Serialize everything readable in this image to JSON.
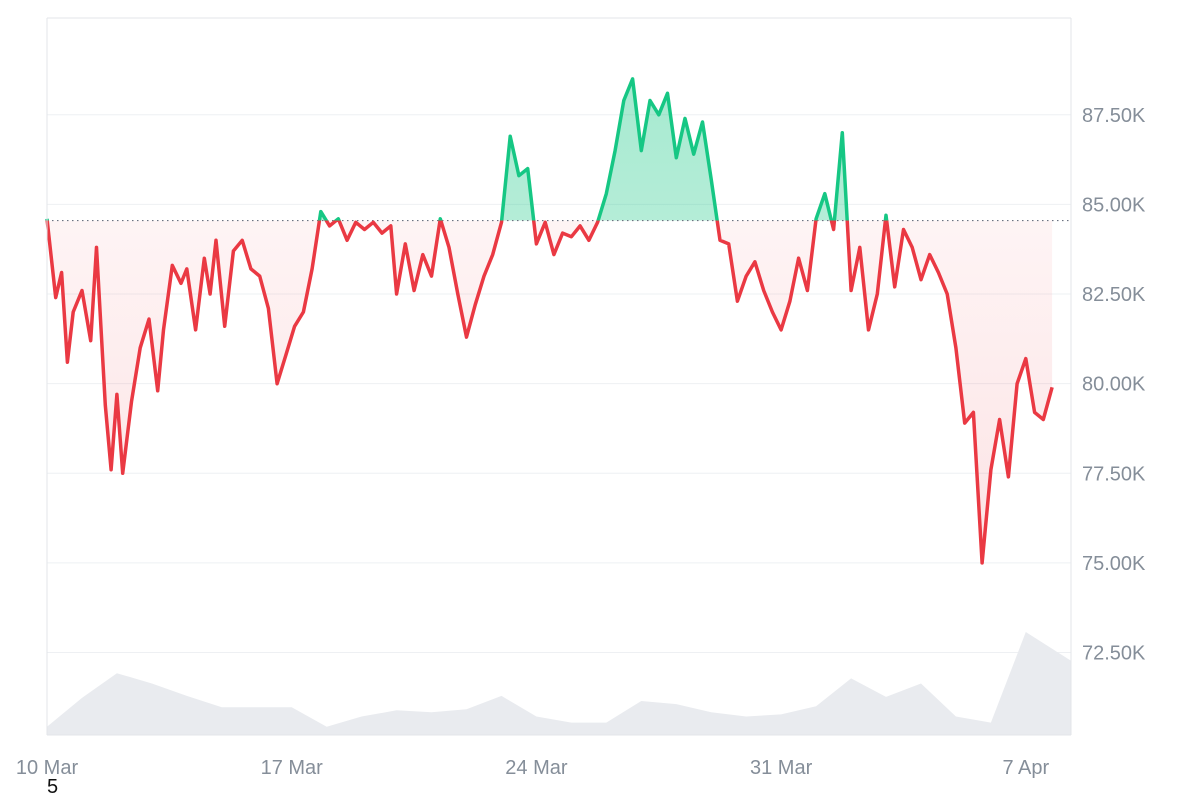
{
  "page_number": "5",
  "colors": {
    "up_line": "#16c784",
    "down_line": "#ea3943",
    "up_fill": "#16c784",
    "down_fill": "#ea3943",
    "baseline": "#6b7280",
    "grid": "#eef0f3",
    "frame": "#e3e6ea",
    "volume": "#e9ebef",
    "tick_text": "#858e99"
  },
  "chart_data": {
    "type": "line",
    "title": "",
    "xlabel": "",
    "ylabel": "",
    "baseline_value": 84.55,
    "ylim": [
      70.2,
      90.2
    ],
    "y_unit_suffix": "K",
    "ytick_values": [
      87.5,
      85.0,
      82.5,
      80.0,
      77.5,
      75.0,
      72.5
    ],
    "yticks": [
      "87.50K",
      "85.00K",
      "82.50K",
      "80.00K",
      "77.50K",
      "75.00K",
      "72.50K"
    ],
    "xlim": [
      "2025-03-10",
      "2025-04-08 07:00"
    ],
    "xticks": [
      {
        "label": "10 Mar",
        "date": "2025-03-10"
      },
      {
        "label": "17 Mar",
        "date": "2025-03-17"
      },
      {
        "label": "24 Mar",
        "date": "2025-03-24"
      },
      {
        "label": "31 Mar",
        "date": "2025-03-31"
      },
      {
        "label": "7 Apr",
        "date": "2025-04-07"
      }
    ],
    "grid": true,
    "series": [
      {
        "role": "price",
        "points": [
          [
            "2025-03-10 00:00",
            84.6
          ],
          [
            "2025-03-10 06:00",
            82.4
          ],
          [
            "2025-03-10 10:00",
            83.1
          ],
          [
            "2025-03-10 14:00",
            80.6
          ],
          [
            "2025-03-10 18:00",
            82.0
          ],
          [
            "2025-03-11 00:00",
            82.6
          ],
          [
            "2025-03-11 06:00",
            81.2
          ],
          [
            "2025-03-11 10:00",
            83.8
          ],
          [
            "2025-03-11 16:00",
            79.4
          ],
          [
            "2025-03-11 20:00",
            77.6
          ],
          [
            "2025-03-12 00:00",
            79.7
          ],
          [
            "2025-03-12 04:00",
            77.5
          ],
          [
            "2025-03-12 10:00",
            79.5
          ],
          [
            "2025-03-12 16:00",
            81.0
          ],
          [
            "2025-03-12 22:00",
            81.8
          ],
          [
            "2025-03-13 04:00",
            79.8
          ],
          [
            "2025-03-13 08:00",
            81.5
          ],
          [
            "2025-03-13 14:00",
            83.3
          ],
          [
            "2025-03-13 20:00",
            82.8
          ],
          [
            "2025-03-14 00:00",
            83.2
          ],
          [
            "2025-03-14 06:00",
            81.5
          ],
          [
            "2025-03-14 12:00",
            83.5
          ],
          [
            "2025-03-14 16:00",
            82.5
          ],
          [
            "2025-03-14 20:00",
            84.0
          ],
          [
            "2025-03-15 02:00",
            81.6
          ],
          [
            "2025-03-15 08:00",
            83.7
          ],
          [
            "2025-03-15 14:00",
            84.0
          ],
          [
            "2025-03-15 20:00",
            83.2
          ],
          [
            "2025-03-16 02:00",
            83.0
          ],
          [
            "2025-03-16 08:00",
            82.1
          ],
          [
            "2025-03-16 14:00",
            80.0
          ],
          [
            "2025-03-16 20:00",
            80.8
          ],
          [
            "2025-03-17 02:00",
            81.6
          ],
          [
            "2025-03-17 08:00",
            82.0
          ],
          [
            "2025-03-17 14:00",
            83.2
          ],
          [
            "2025-03-17 20:00",
            84.8
          ],
          [
            "2025-03-18 02:00",
            84.4
          ],
          [
            "2025-03-18 08:00",
            84.6
          ],
          [
            "2025-03-18 14:00",
            84.0
          ],
          [
            "2025-03-18 20:00",
            84.5
          ],
          [
            "2025-03-19 02:00",
            84.3
          ],
          [
            "2025-03-19 08:00",
            84.5
          ],
          [
            "2025-03-19 14:00",
            84.2
          ],
          [
            "2025-03-19 20:00",
            84.4
          ],
          [
            "2025-03-20 00:00",
            82.5
          ],
          [
            "2025-03-20 06:00",
            83.9
          ],
          [
            "2025-03-20 12:00",
            82.6
          ],
          [
            "2025-03-20 18:00",
            83.6
          ],
          [
            "2025-03-21 00:00",
            83.0
          ],
          [
            "2025-03-21 06:00",
            84.6
          ],
          [
            "2025-03-21 12:00",
            83.8
          ],
          [
            "2025-03-21 18:00",
            82.5
          ],
          [
            "2025-03-22 00:00",
            81.3
          ],
          [
            "2025-03-22 06:00",
            82.2
          ],
          [
            "2025-03-22 12:00",
            83.0
          ],
          [
            "2025-03-22 18:00",
            83.6
          ],
          [
            "2025-03-23 00:00",
            84.5
          ],
          [
            "2025-03-23 06:00",
            86.9
          ],
          [
            "2025-03-23 12:00",
            85.8
          ],
          [
            "2025-03-23 18:00",
            86.0
          ],
          [
            "2025-03-24 00:00",
            83.9
          ],
          [
            "2025-03-24 06:00",
            84.5
          ],
          [
            "2025-03-24 12:00",
            83.6
          ],
          [
            "2025-03-24 18:00",
            84.2
          ],
          [
            "2025-03-25 00:00",
            84.1
          ],
          [
            "2025-03-25 06:00",
            84.4
          ],
          [
            "2025-03-25 12:00",
            84.0
          ],
          [
            "2025-03-25 18:00",
            84.5
          ],
          [
            "2025-03-26 00:00",
            85.3
          ],
          [
            "2025-03-26 06:00",
            86.5
          ],
          [
            "2025-03-26 12:00",
            87.9
          ],
          [
            "2025-03-26 18:00",
            88.5
          ],
          [
            "2025-03-27 00:00",
            86.5
          ],
          [
            "2025-03-27 06:00",
            87.9
          ],
          [
            "2025-03-27 12:00",
            87.5
          ],
          [
            "2025-03-27 18:00",
            88.1
          ],
          [
            "2025-03-28 00:00",
            86.3
          ],
          [
            "2025-03-28 06:00",
            87.4
          ],
          [
            "2025-03-28 12:00",
            86.4
          ],
          [
            "2025-03-28 18:00",
            87.3
          ],
          [
            "2025-03-29 00:00",
            85.7
          ],
          [
            "2025-03-29 06:00",
            84.0
          ],
          [
            "2025-03-29 12:00",
            83.9
          ],
          [
            "2025-03-29 18:00",
            82.3
          ],
          [
            "2025-03-30 00:00",
            83.0
          ],
          [
            "2025-03-30 06:00",
            83.4
          ],
          [
            "2025-03-30 12:00",
            82.6
          ],
          [
            "2025-03-30 18:00",
            82.0
          ],
          [
            "2025-03-31 00:00",
            81.5
          ],
          [
            "2025-03-31 06:00",
            82.3
          ],
          [
            "2025-03-31 12:00",
            83.5
          ],
          [
            "2025-03-31 18:00",
            82.6
          ],
          [
            "2025-04-01 00:00",
            84.6
          ],
          [
            "2025-04-01 06:00",
            85.3
          ],
          [
            "2025-04-01 12:00",
            84.3
          ],
          [
            "2025-04-01 18:00",
            87.0
          ],
          [
            "2025-04-02 00:00",
            82.6
          ],
          [
            "2025-04-02 06:00",
            83.8
          ],
          [
            "2025-04-02 12:00",
            81.5
          ],
          [
            "2025-04-02 18:00",
            82.5
          ],
          [
            "2025-04-03 00:00",
            84.7
          ],
          [
            "2025-04-03 06:00",
            82.7
          ],
          [
            "2025-04-03 12:00",
            84.3
          ],
          [
            "2025-04-03 18:00",
            83.8
          ],
          [
            "2025-04-04 00:00",
            82.9
          ],
          [
            "2025-04-04 06:00",
            83.6
          ],
          [
            "2025-04-04 12:00",
            83.1
          ],
          [
            "2025-04-04 18:00",
            82.5
          ],
          [
            "2025-04-05 00:00",
            81.0
          ],
          [
            "2025-04-05 06:00",
            78.9
          ],
          [
            "2025-04-05 12:00",
            79.2
          ],
          [
            "2025-04-05 18:00",
            75.0
          ],
          [
            "2025-04-06 00:00",
            77.6
          ],
          [
            "2025-04-06 06:00",
            79.0
          ],
          [
            "2025-04-06 12:00",
            77.4
          ],
          [
            "2025-04-06 18:00",
            80.0
          ],
          [
            "2025-04-07 00:00",
            80.7
          ],
          [
            "2025-04-07 06:00",
            79.2
          ],
          [
            "2025-04-07 12:00",
            79.0
          ],
          [
            "2025-04-07 18:00",
            79.9
          ]
        ]
      },
      {
        "role": "volume",
        "points": [
          [
            "2025-03-10 00:00",
            0.08
          ],
          [
            "2025-03-11 00:00",
            0.36
          ],
          [
            "2025-03-12 00:00",
            0.6
          ],
          [
            "2025-03-13 00:00",
            0.5
          ],
          [
            "2025-03-14 00:00",
            0.38
          ],
          [
            "2025-03-15 00:00",
            0.27
          ],
          [
            "2025-03-16 00:00",
            0.27
          ],
          [
            "2025-03-17 00:00",
            0.27
          ],
          [
            "2025-03-18 00:00",
            0.08
          ],
          [
            "2025-03-19 00:00",
            0.18
          ],
          [
            "2025-03-20 00:00",
            0.24
          ],
          [
            "2025-03-21 00:00",
            0.22
          ],
          [
            "2025-03-22 00:00",
            0.25
          ],
          [
            "2025-03-23 00:00",
            0.38
          ],
          [
            "2025-03-24 00:00",
            0.18
          ],
          [
            "2025-03-25 00:00",
            0.12
          ],
          [
            "2025-03-26 00:00",
            0.12
          ],
          [
            "2025-03-27 00:00",
            0.33
          ],
          [
            "2025-03-28 00:00",
            0.3
          ],
          [
            "2025-03-29 00:00",
            0.22
          ],
          [
            "2025-03-30 00:00",
            0.18
          ],
          [
            "2025-03-31 00:00",
            0.2
          ],
          [
            "2025-04-01 00:00",
            0.28
          ],
          [
            "2025-04-02 00:00",
            0.55
          ],
          [
            "2025-04-03 00:00",
            0.37
          ],
          [
            "2025-04-04 00:00",
            0.5
          ],
          [
            "2025-04-05 00:00",
            0.18
          ],
          [
            "2025-04-06 00:00",
            0.12
          ],
          [
            "2025-04-07 00:00",
            1.0
          ],
          [
            "2025-04-08 07:00",
            0.72
          ]
        ]
      }
    ]
  }
}
